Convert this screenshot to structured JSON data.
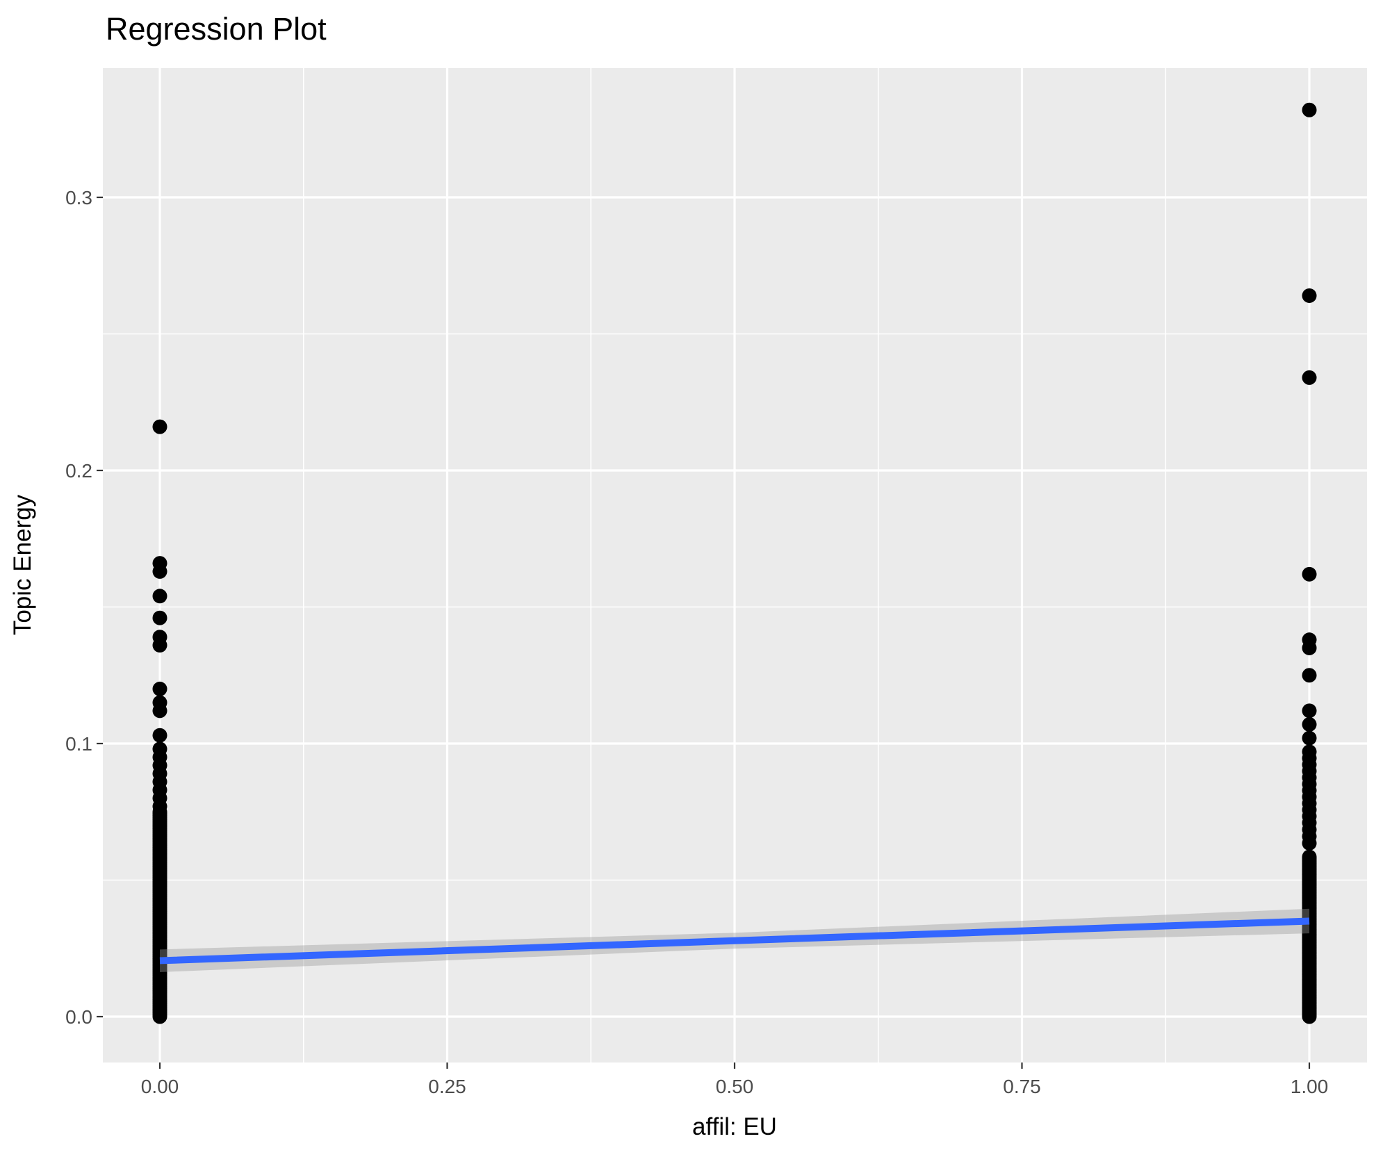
{
  "chart": {
    "title": "Regression Plot",
    "xlabel": "affil: EU",
    "ylabel": "Topic Energy"
  },
  "chart_data": {
    "type": "scatter",
    "title": "Regression Plot",
    "xlabel": "affil: EU",
    "ylabel": "Topic Energy",
    "grid": true,
    "legend": false,
    "xlim": [
      -0.05,
      1.05
    ],
    "ylim": [
      -0.017,
      0.347
    ],
    "x_ticks": {
      "values": [
        0,
        0.25,
        0.5,
        0.75,
        1
      ],
      "labels": [
        "0.00",
        "0.25",
        "0.50",
        "0.75",
        "1.00"
      ]
    },
    "y_ticks": {
      "values": [
        0,
        0.1,
        0.2,
        0.3
      ],
      "labels": [
        "0.0",
        "0.1",
        "0.2",
        "0.3"
      ]
    },
    "x_minor": [
      0.125,
      0.375,
      0.625,
      0.875
    ],
    "y_minor": [
      0.05,
      0.15,
      0.25
    ],
    "groups": [
      {
        "x": 0,
        "outliers": [
          0.216,
          0.166,
          0.163,
          0.154,
          0.146,
          0.139,
          0.136,
          0.12,
          0.115,
          0.112,
          0.103
        ],
        "dense_ranges": [
          {
            "min": 0.0,
            "max": 0.075,
            "count": 110
          },
          {
            "min": 0.077,
            "max": 0.098,
            "count": 8
          }
        ]
      },
      {
        "x": 1,
        "outliers": [
          0.332,
          0.264,
          0.234,
          0.162,
          0.138,
          0.135,
          0.125,
          0.112,
          0.107,
          0.102
        ],
        "dense_ranges": [
          {
            "min": 0.0,
            "max": 0.0585,
            "count": 100
          },
          {
            "min": 0.0635,
            "max": 0.0685,
            "count": 3
          },
          {
            "min": 0.071,
            "max": 0.097,
            "count": 12
          }
        ]
      }
    ],
    "regression": {
      "x": [
        0,
        0.5,
        1
      ],
      "fit": [
        0.0205,
        0.0278,
        0.035
      ],
      "ci_lower": [
        0.0163,
        0.0249,
        0.0305
      ],
      "ci_upper": [
        0.0246,
        0.0307,
        0.0395
      ]
    },
    "colors": {
      "point": "#000000",
      "line": "#3366FF",
      "ribbon": "#999999",
      "ribbon_alpha": 0.4,
      "panel_bg": "#EBEBEB",
      "grid": "#FFFFFF",
      "tick_mark": "#333333",
      "tick_label": "#4D4D4D",
      "title": "#000000"
    }
  }
}
